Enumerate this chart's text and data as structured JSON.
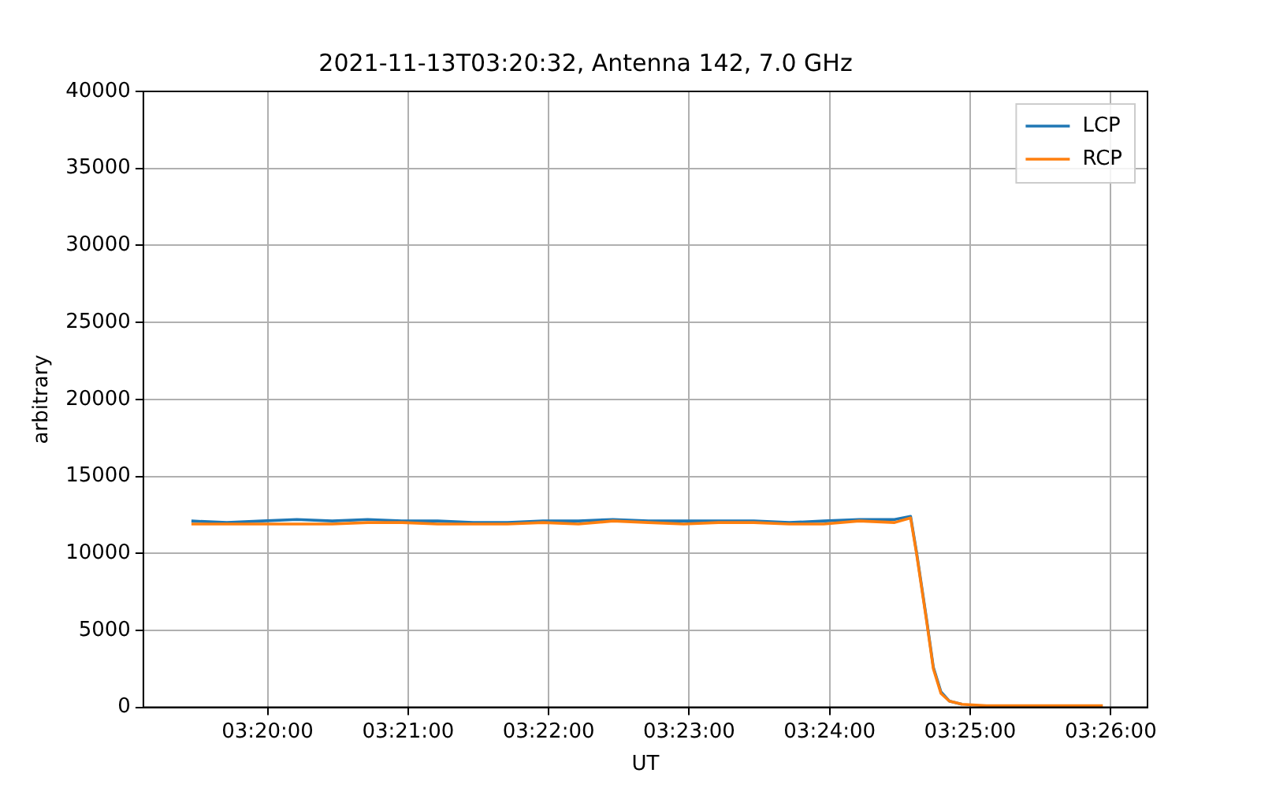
{
  "chart_data": {
    "type": "line",
    "title": "2021-11-13T03:20:32, Antenna 142, 7.0 GHz",
    "xlabel": "UT",
    "ylabel": "arbitrary",
    "x": [
      3.3243,
      3.3285,
      3.3327,
      3.3368,
      3.341,
      3.3452,
      3.3493,
      3.3535,
      3.3577,
      3.3618,
      3.366,
      3.3702,
      3.3743,
      3.3785,
      3.3827,
      3.3868,
      3.391,
      3.3952,
      3.3993,
      3.4035,
      3.4077,
      3.4096,
      3.4103,
      3.4115,
      3.4123,
      3.4132,
      3.4142,
      3.4157,
      3.4186,
      3.4243,
      3.4324
    ],
    "series": [
      {
        "name": "LCP",
        "color": "#1f77b4",
        "values": [
          12100,
          12000,
          12100,
          12200,
          12100,
          12200,
          12100,
          12100,
          12000,
          12000,
          12100,
          12100,
          12200,
          12100,
          12100,
          12100,
          12100,
          12000,
          12100,
          12200,
          12200,
          12400,
          10100,
          5700,
          2600,
          1000,
          400,
          200,
          null,
          null,
          null
        ]
      },
      {
        "name": "RCP",
        "color": "#ff7f0e",
        "values": [
          11900,
          11900,
          11900,
          11900,
          11900,
          12000,
          12000,
          11900,
          11900,
          11900,
          12000,
          11900,
          12100,
          12000,
          11900,
          12000,
          12000,
          11900,
          11900,
          12100,
          12000,
          12300,
          10000,
          5600,
          2500,
          900,
          400,
          200,
          100,
          100,
          100
        ]
      }
    ],
    "xlim": [
      3.3186,
      3.4377
    ],
    "xticks": [
      {
        "value": 3.333333,
        "label": "03:20:00"
      },
      {
        "value": 3.35,
        "label": "03:21:00"
      },
      {
        "value": 3.366667,
        "label": "03:22:00"
      },
      {
        "value": 3.383333,
        "label": "03:23:00"
      },
      {
        "value": 3.4,
        "label": "03:24:00"
      },
      {
        "value": 3.416667,
        "label": "03:25:00"
      },
      {
        "value": 3.433333,
        "label": "03:26:00"
      }
    ],
    "ylim": [
      0,
      40000
    ],
    "yticks": [
      0,
      5000,
      10000,
      15000,
      20000,
      25000,
      30000,
      35000,
      40000
    ],
    "grid": true,
    "legend": "top right",
    "marker": "none",
    "line_style": "solid"
  }
}
